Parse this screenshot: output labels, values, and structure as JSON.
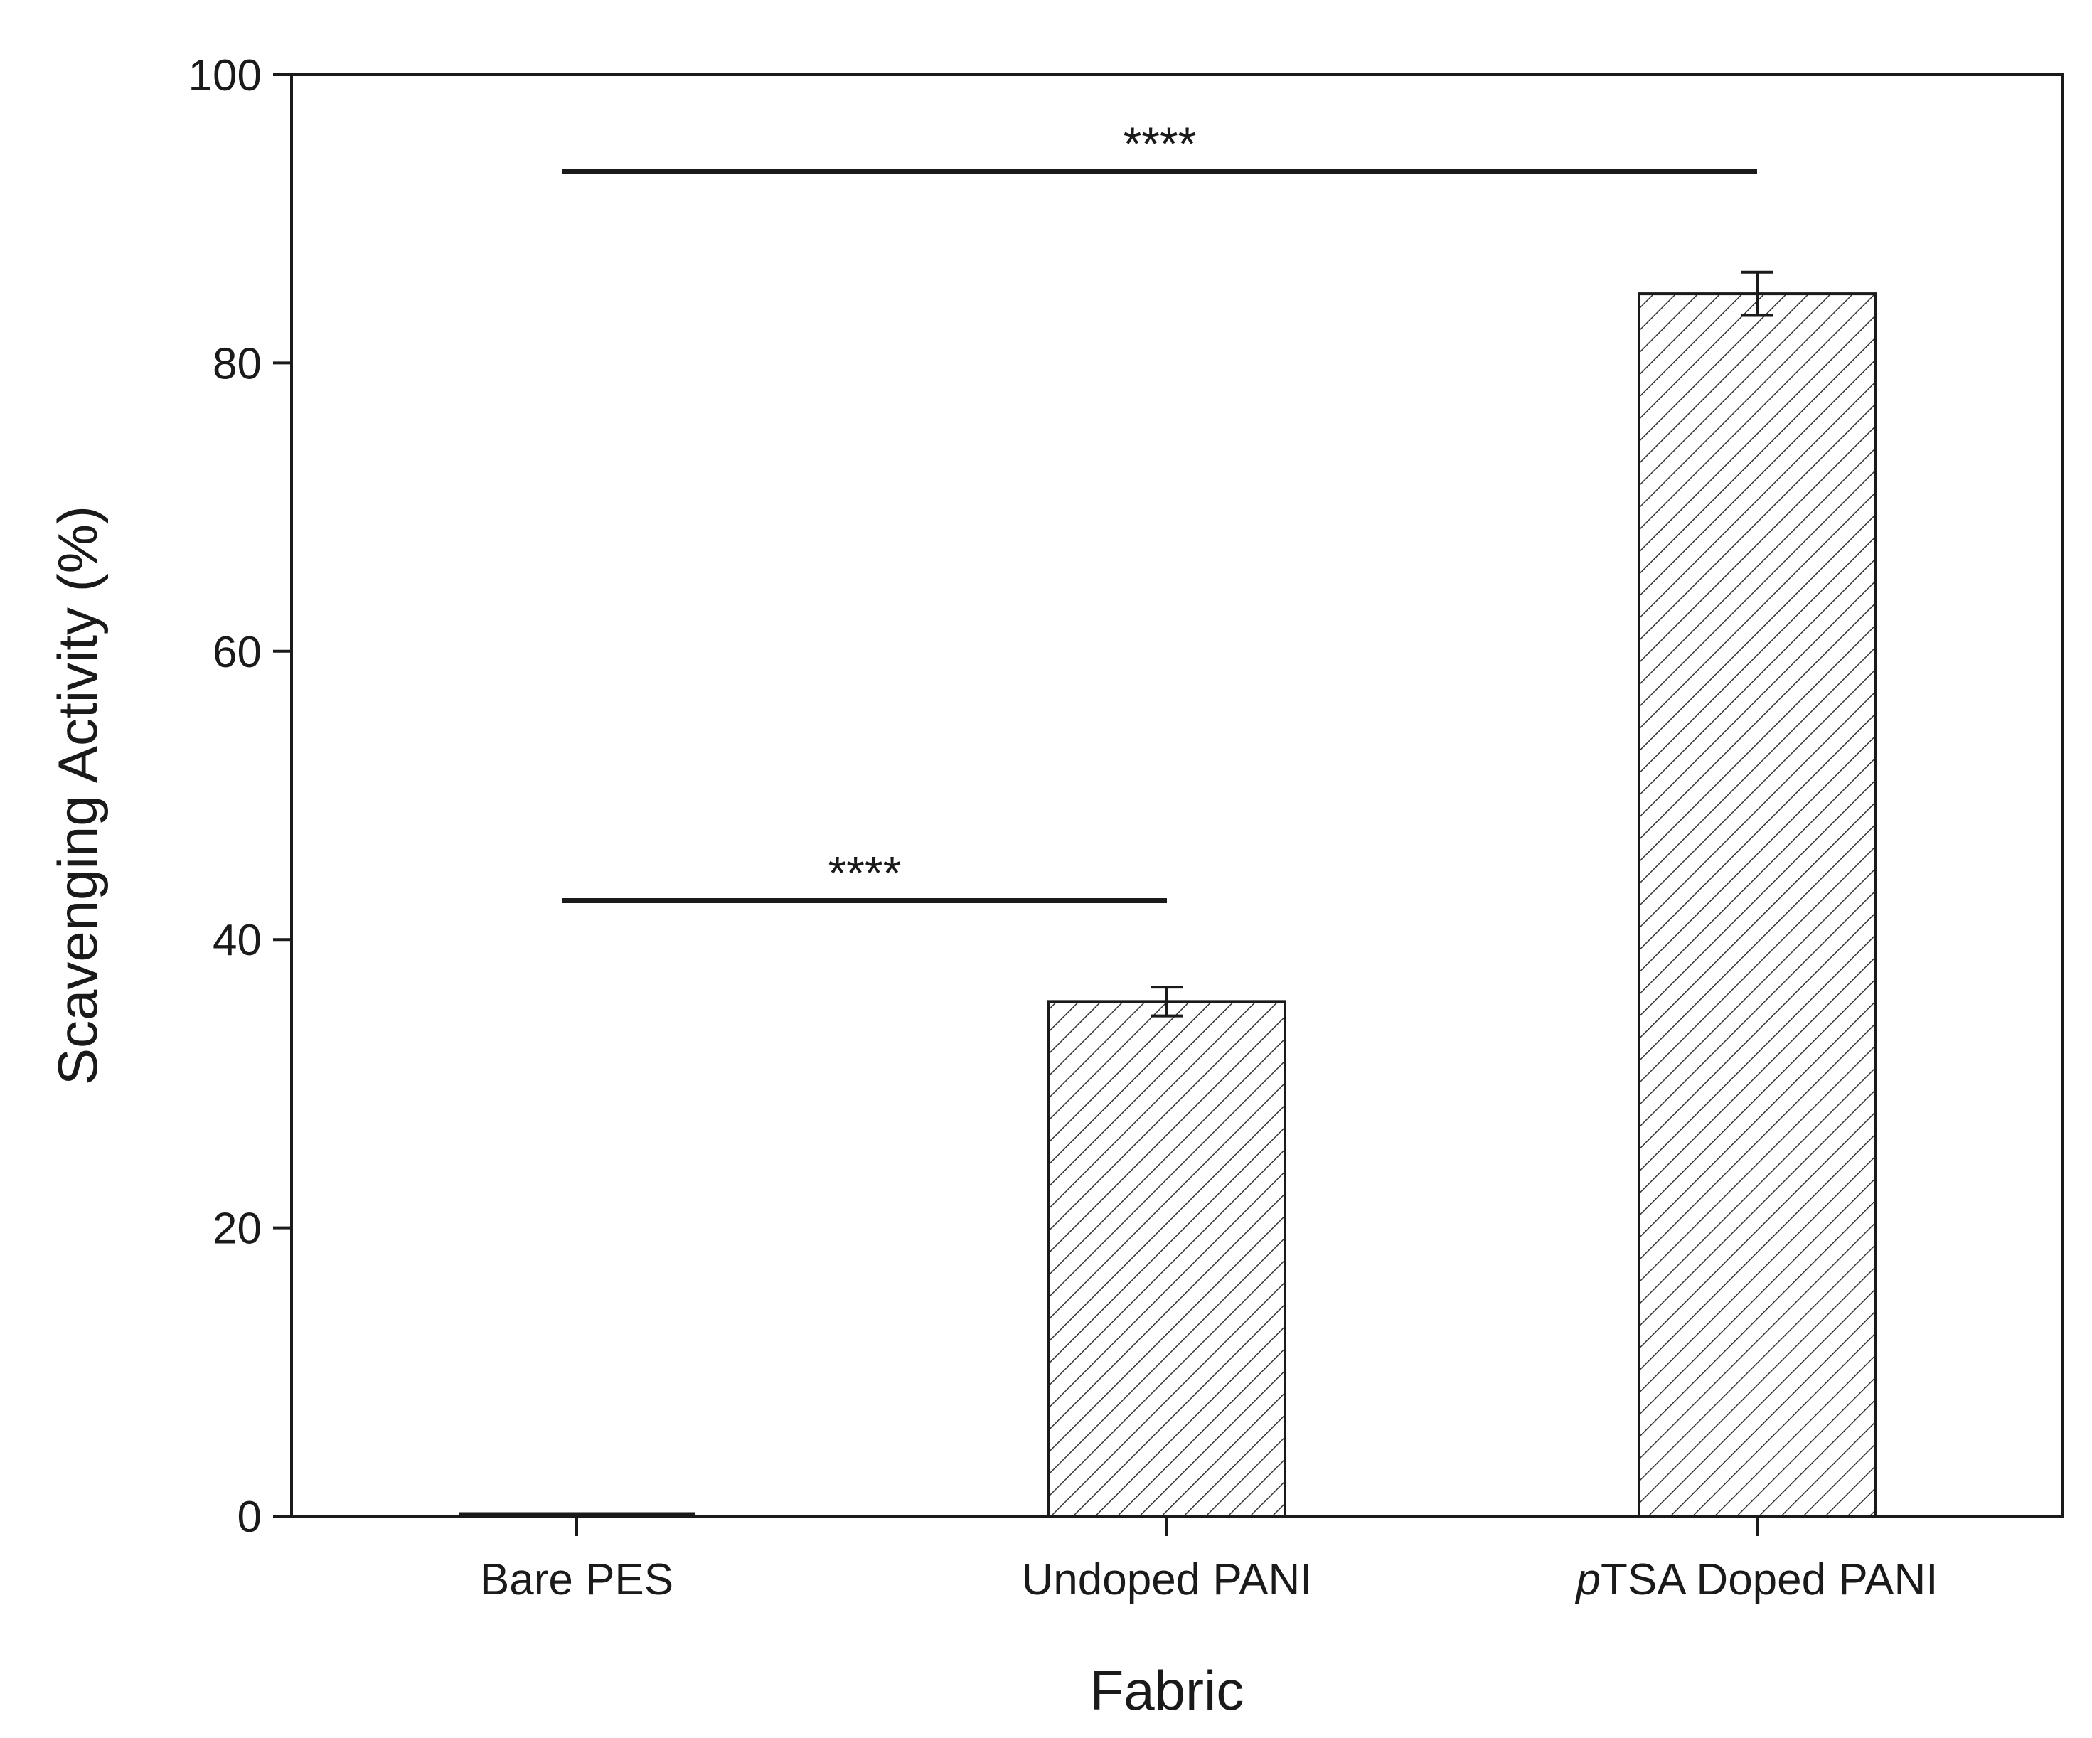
{
  "chart_data": {
    "type": "bar",
    "categories": [
      {
        "prefix": "",
        "italic": "",
        "main": "Bare PES"
      },
      {
        "prefix": "",
        "italic": "",
        "main": "Undoped PANI"
      },
      {
        "prefix": "",
        "italic": "p",
        "main": "TSA Doped PANI"
      }
    ],
    "category_labels": [
      "Bare PES",
      "Undoped PANI",
      "pTSA Doped PANI"
    ],
    "values": [
      0,
      35.7,
      84.8
    ],
    "errors": [
      0,
      1.0,
      1.5
    ],
    "xlabel": "Fabric",
    "ylabel": "Scavenging Activity (%)",
    "ylim": [
      0,
      100
    ],
    "yticks": [
      0,
      20,
      40,
      60,
      80,
      100
    ],
    "bar_fill": "hatched",
    "bar_color": "#1a1a1a",
    "grid": false,
    "significance": [
      {
        "from": 0,
        "to": 1,
        "y": 42.7,
        "label": "****"
      },
      {
        "from": 0,
        "to": 2,
        "y": 93.3,
        "label": "****"
      }
    ]
  }
}
